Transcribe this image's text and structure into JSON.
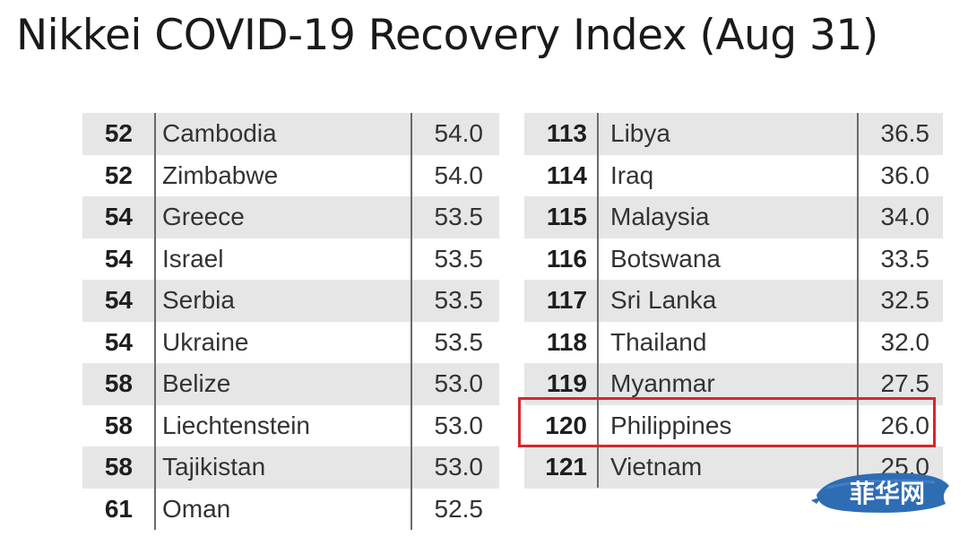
{
  "title": "Nikkei COVID-19 Recovery Index (Aug 31)",
  "left_rows": [
    {
      "rank": "52",
      "country": "Cambodia",
      "score": "54.0"
    },
    {
      "rank": "52",
      "country": "Zimbabwe",
      "score": "54.0"
    },
    {
      "rank": "54",
      "country": "Greece",
      "score": "53.5"
    },
    {
      "rank": "54",
      "country": "Israel",
      "score": "53.5"
    },
    {
      "rank": "54",
      "country": "Serbia",
      "score": "53.5"
    },
    {
      "rank": "54",
      "country": "Ukraine",
      "score": "53.5"
    },
    {
      "rank": "58",
      "country": "Belize",
      "score": "53.0"
    },
    {
      "rank": "58",
      "country": "Liechtenstein",
      "score": "53.0"
    },
    {
      "rank": "58",
      "country": "Tajikistan",
      "score": "53.0"
    },
    {
      "rank": "61",
      "country": "Oman",
      "score": "52.5"
    }
  ],
  "right_rows": [
    {
      "rank": "113",
      "country": "Libya",
      "score": "36.5"
    },
    {
      "rank": "114",
      "country": "Iraq",
      "score": "36.0"
    },
    {
      "rank": "115",
      "country": "Malaysia",
      "score": "34.0"
    },
    {
      "rank": "116",
      "country": "Botswana",
      "score": "33.5"
    },
    {
      "rank": "117",
      "country": "Sri Lanka",
      "score": "32.5"
    },
    {
      "rank": "118",
      "country": "Thailand",
      "score": "32.0"
    },
    {
      "rank": "119",
      "country": "Myanmar",
      "score": "27.5"
    },
    {
      "rank": "120",
      "country": "Philippines",
      "score": "26.0"
    },
    {
      "rank": "121",
      "country": "Vietnam",
      "score": "25.0"
    }
  ],
  "watermark": {
    "text": "菲华网",
    "color": "#2e6db4"
  },
  "colors": {
    "highlight": "#d9252e",
    "shade": "#e6e6e6"
  }
}
